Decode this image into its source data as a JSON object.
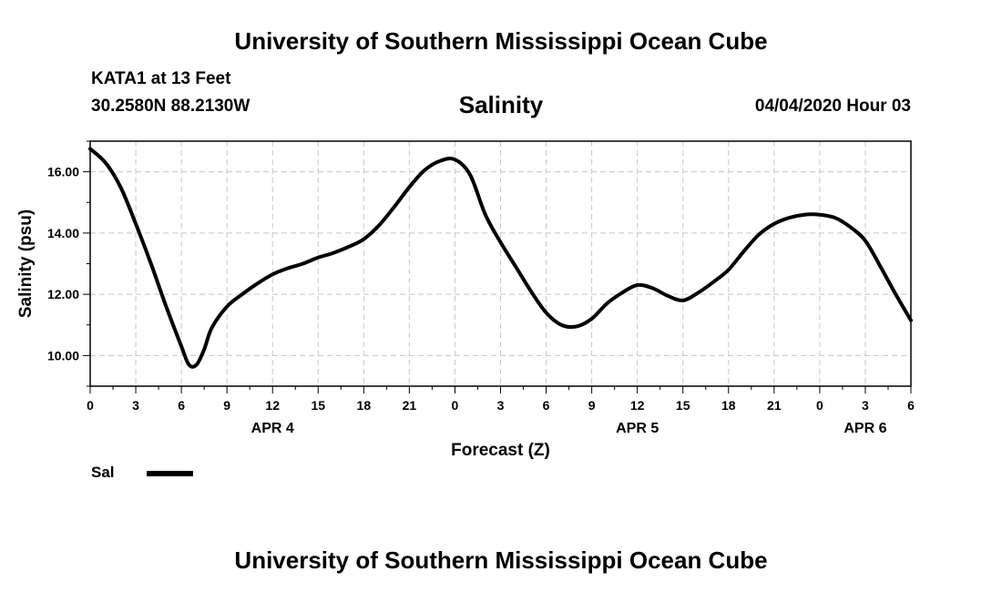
{
  "header": {
    "title_top": "University of Southern Mississippi Ocean Cube",
    "station": "KATA1 at 13 Feet",
    "coords": "30.2580N 88.2130W",
    "datetime": "04/04/2020 Hour 03",
    "title_bottom": "University of Southern Mississippi Ocean Cube"
  },
  "legend": {
    "label": "Sal",
    "color": "#000000"
  },
  "chart_data": {
    "type": "line",
    "title": "Salinity",
    "xlabel": "Forecast (Z)",
    "ylabel": "Salinity (psu)",
    "xlim": [
      0,
      54
    ],
    "ylim": [
      9,
      17
    ],
    "yticks": [
      10,
      12,
      14,
      16
    ],
    "ytick_labels": [
      "10.00",
      "12.00",
      "14.00",
      "16.00"
    ],
    "xticks": [
      0,
      3,
      6,
      9,
      12,
      15,
      18,
      21,
      24,
      27,
      30,
      33,
      36,
      39,
      42,
      45,
      48,
      51,
      54
    ],
    "xtick_labels": [
      "0",
      "3",
      "6",
      "9",
      "12",
      "15",
      "18",
      "21",
      "0",
      "3",
      "6",
      "9",
      "12",
      "15",
      "18",
      "21",
      "0",
      "3",
      "6"
    ],
    "date_labels": [
      {
        "x": 12,
        "label": "APR 4"
      },
      {
        "x": 36,
        "label": "APR 5"
      },
      {
        "x": 51,
        "label": "APR 6"
      }
    ],
    "grid": true,
    "series": [
      {
        "name": "Sal",
        "x": [
          0,
          1,
          2,
          3,
          4,
          5,
          6,
          6.5,
          7,
          7.5,
          8,
          9,
          10,
          11,
          12,
          13,
          14,
          15,
          16,
          17,
          18,
          19,
          20,
          21,
          22,
          23,
          24,
          25,
          26,
          27,
          28,
          29,
          30,
          31,
          32,
          33,
          34,
          35,
          36,
          37,
          38,
          39,
          40,
          41,
          42,
          43,
          44,
          45,
          46,
          47,
          48,
          49,
          50,
          51,
          52,
          53,
          54
        ],
        "values": [
          16.75,
          16.3,
          15.5,
          14.3,
          13.0,
          11.6,
          10.3,
          9.7,
          9.7,
          10.2,
          10.9,
          11.6,
          12.0,
          12.35,
          12.65,
          12.85,
          13.0,
          13.2,
          13.35,
          13.55,
          13.8,
          14.25,
          14.85,
          15.5,
          16.05,
          16.35,
          16.4,
          15.9,
          14.6,
          13.7,
          12.9,
          12.1,
          11.4,
          11.0,
          10.95,
          11.2,
          11.7,
          12.05,
          12.3,
          12.2,
          11.95,
          11.8,
          12.05,
          12.4,
          12.8,
          13.4,
          13.95,
          14.3,
          14.5,
          14.6,
          14.6,
          14.5,
          14.2,
          13.75,
          12.9,
          12.0,
          11.15
        ]
      }
    ]
  }
}
